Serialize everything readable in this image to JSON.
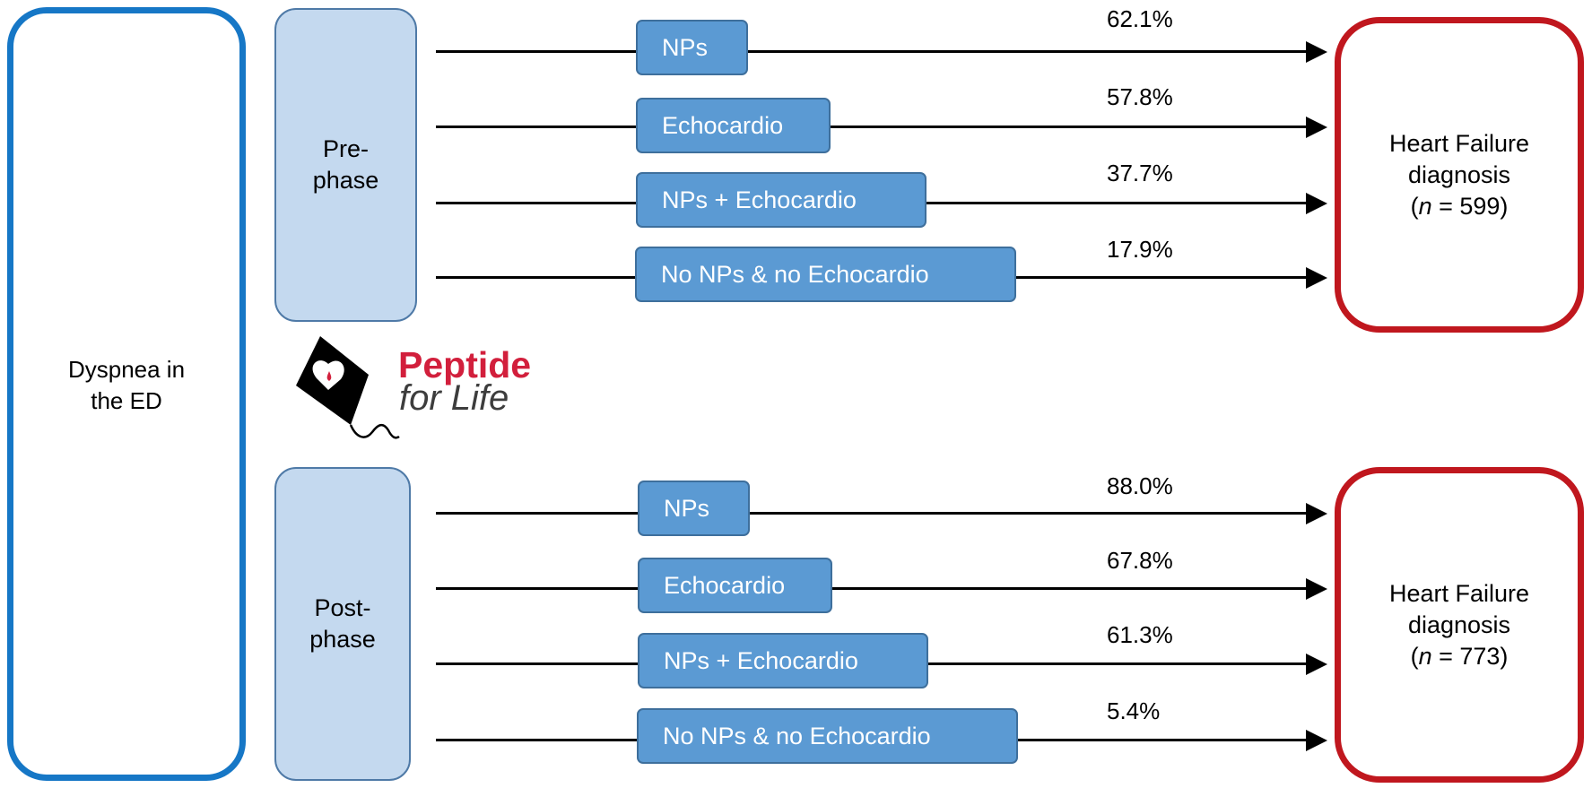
{
  "start": {
    "label_lines": [
      "Dyspnea in",
      "the ED"
    ]
  },
  "logo": {
    "line1": "Peptide",
    "line2": "for Life"
  },
  "phases": [
    {
      "label_lines": [
        "Pre-",
        "phase"
      ],
      "rows": [
        {
          "method": "NPs",
          "percent": "62.1%"
        },
        {
          "method": "Echocardio",
          "percent": "57.8%"
        },
        {
          "method": "NPs + Echocardio",
          "percent": "37.7%"
        },
        {
          "method": "No NPs & no Echocardio",
          "percent": "17.9%"
        }
      ],
      "outcome": {
        "line1": "Heart Failure",
        "line2": "diagnosis",
        "n_prefix": "(",
        "n_var": "n",
        "n_suffix": " = 599)"
      }
    },
    {
      "label_lines": [
        "Post-",
        "phase"
      ],
      "rows": [
        {
          "method": "NPs",
          "percent": "88.0%"
        },
        {
          "method": "Echocardio",
          "percent": "67.8%"
        },
        {
          "method": "NPs + Echocardio",
          "percent": "61.3%"
        },
        {
          "method": "No NPs & no Echocardio",
          "percent": "5.4%"
        }
      ],
      "outcome": {
        "line1": "Heart Failure",
        "line2": "diagnosis",
        "n_prefix": "(",
        "n_var": "n",
        "n_suffix": " = 773)"
      }
    }
  ],
  "colors": {
    "start_border": "#1677c6",
    "phase_fill": "#c4d9ef",
    "method_fill": "#5b9ad3",
    "outcome_border": "#c0171e",
    "logo_red": "#d21f3c"
  }
}
